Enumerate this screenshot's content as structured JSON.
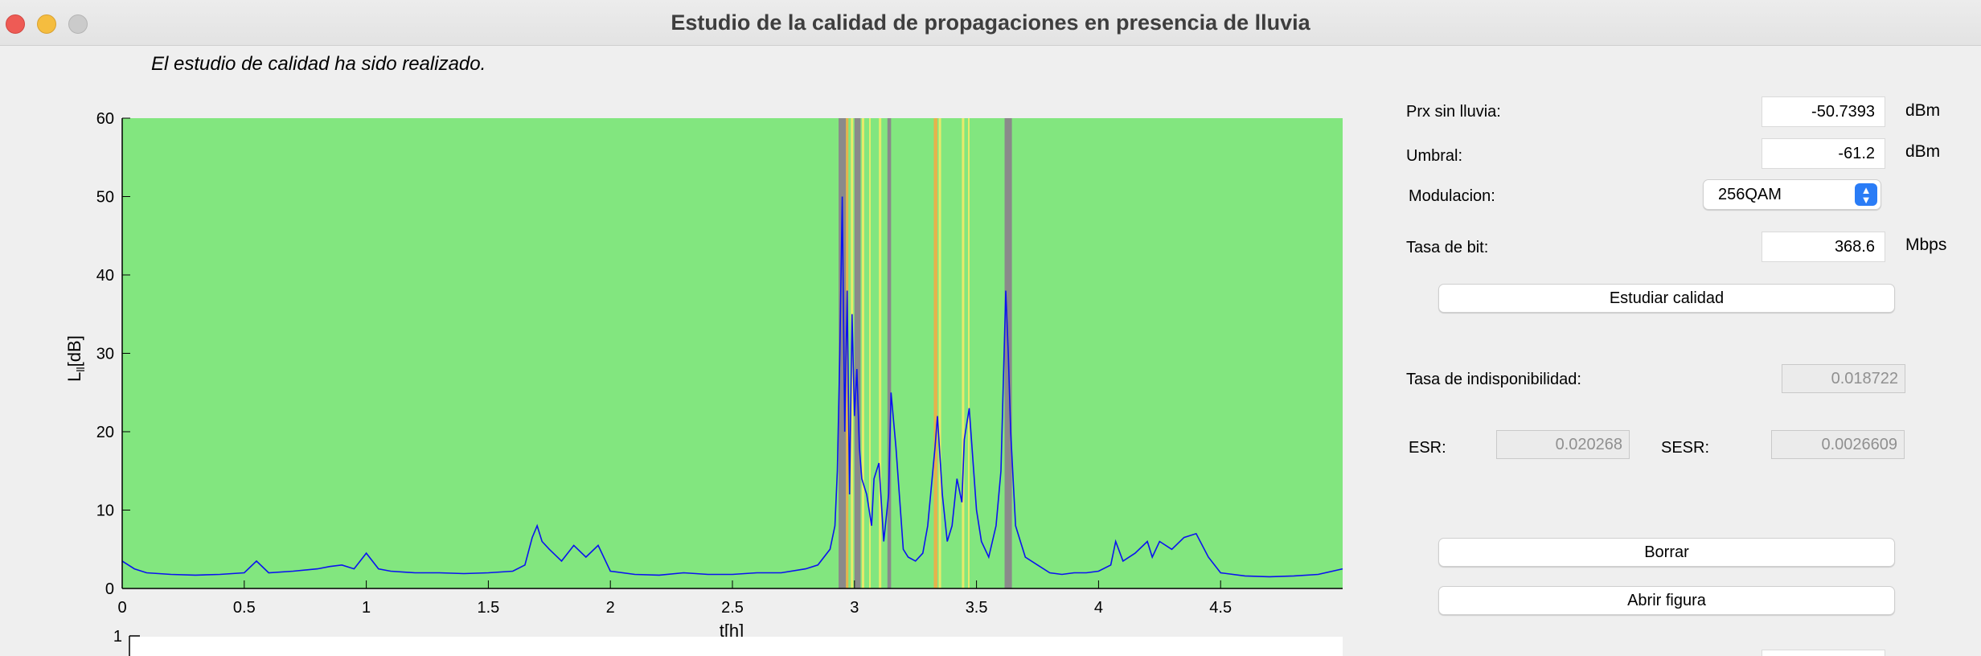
{
  "window": {
    "title": "Estudio de la calidad de propagaciones en presencia de lluvia"
  },
  "status_text": "El estudio de calidad ha sido realizado.",
  "form": {
    "prx": {
      "label": "Prx sin lluvia:",
      "value": "-50.7393",
      "unit": "dBm"
    },
    "umbral": {
      "label": "Umbral:",
      "value": "-61.2",
      "unit": "dBm"
    },
    "modulacion": {
      "label": "Modulacion:",
      "value": "256QAM"
    },
    "tasa_bit": {
      "label": "Tasa de bit:",
      "value": "368.6",
      "unit": "Mbps"
    },
    "study_button": "Estudiar calidad"
  },
  "results": {
    "indisp": {
      "label": "Tasa de indisponibilidad:",
      "value": "0.018722"
    },
    "esr": {
      "label": "ESR:",
      "value": "0.020268"
    },
    "sesr": {
      "label": "SESR:",
      "value": "0.0026609"
    }
  },
  "buttons": {
    "borrar": "Borrar",
    "abrir": "Abrir figura"
  },
  "colors": {
    "background_available": "#82e67f",
    "unavailable": "#8a8a8a",
    "degraded": "#e8ea6a",
    "orange": "#e6b24c",
    "series": "#0b12f0",
    "accent": "#2a7cf6"
  },
  "chart_data": {
    "type": "line",
    "xlabel": "t[h]",
    "ylabel": "L_ll[dB]",
    "xlim": [
      0,
      5
    ],
    "ylim": [
      0,
      60
    ],
    "xticks": [
      "0",
      "0.5",
      "1",
      "1.5",
      "2",
      "2.5",
      "3",
      "3.5",
      "4",
      "4.5"
    ],
    "yticks": [
      "0",
      "10",
      "20",
      "30",
      "40",
      "50",
      "60"
    ],
    "series": [
      {
        "x": [
          0,
          0.05,
          0.1,
          0.2,
          0.3,
          0.4,
          0.5,
          0.55,
          0.6,
          0.7,
          0.8,
          0.85,
          0.9,
          0.95,
          1.0,
          1.05,
          1.1,
          1.2,
          1.3,
          1.4,
          1.5,
          1.6,
          1.65,
          1.68,
          1.7,
          1.72,
          1.75,
          1.8,
          1.85,
          1.9,
          1.95,
          2.0,
          2.1,
          2.2,
          2.3,
          2.4,
          2.5,
          2.6,
          2.7,
          2.8,
          2.85,
          2.9,
          2.92,
          2.93,
          2.94,
          2.95,
          2.96,
          2.97,
          2.98,
          2.99,
          3.0,
          3.01,
          3.02,
          3.03,
          3.05,
          3.07,
          3.08,
          3.1,
          3.12,
          3.14,
          3.15,
          3.17,
          3.2,
          3.22,
          3.25,
          3.28,
          3.3,
          3.33,
          3.34,
          3.36,
          3.38,
          3.4,
          3.42,
          3.44,
          3.45,
          3.47,
          3.5,
          3.52,
          3.55,
          3.58,
          3.6,
          3.62,
          3.63,
          3.64,
          3.65,
          3.66,
          3.68,
          3.7,
          3.75,
          3.8,
          3.85,
          3.9,
          3.95,
          4.0,
          4.05,
          4.07,
          4.1,
          4.15,
          4.2,
          4.22,
          4.25,
          4.3,
          4.35,
          4.4,
          4.45,
          4.5,
          4.6,
          4.7,
          4.8,
          4.9,
          5.0
        ],
        "y": [
          3.5,
          2.5,
          2.0,
          1.8,
          1.7,
          1.8,
          2.0,
          3.5,
          2.0,
          2.2,
          2.5,
          2.8,
          3.0,
          2.5,
          4.5,
          2.5,
          2.2,
          2.0,
          2.0,
          1.9,
          2.0,
          2.2,
          3.0,
          6.5,
          8.0,
          6.0,
          5.0,
          3.5,
          5.5,
          4.0,
          5.5,
          2.2,
          1.8,
          1.7,
          2.0,
          1.8,
          1.8,
          2.0,
          2.0,
          2.5,
          3.0,
          5.0,
          8.0,
          15.0,
          30.0,
          50.0,
          20.0,
          38.0,
          12.0,
          35.0,
          22.0,
          28.0,
          18.0,
          14.0,
          12.0,
          8.0,
          14.0,
          16.0,
          6.0,
          12.0,
          25.0,
          18.0,
          5.0,
          4.0,
          3.5,
          4.5,
          8.0,
          18.0,
          22.0,
          12.0,
          6.0,
          8.0,
          14.0,
          11.0,
          19.0,
          23.0,
          10.0,
          6.0,
          4.0,
          8.0,
          15.0,
          38.0,
          30.0,
          20.0,
          14.0,
          8.0,
          6.0,
          4.0,
          3.0,
          2.0,
          1.8,
          2.0,
          2.0,
          2.2,
          3.0,
          6.0,
          3.5,
          4.5,
          6.0,
          4.0,
          6.0,
          5.0,
          6.5,
          7.0,
          4.0,
          2.0,
          1.6,
          1.5,
          1.6,
          1.8,
          2.5
        ]
      }
    ],
    "bands": [
      {
        "x0": 2.935,
        "x1": 2.965,
        "color": "#8a8a8a"
      },
      {
        "x0": 2.965,
        "x1": 2.975,
        "color": "#e6b24c"
      },
      {
        "x0": 2.985,
        "x1": 2.995,
        "color": "#e8ea6a"
      },
      {
        "x0": 3.0,
        "x1": 3.025,
        "color": "#8a8a8a"
      },
      {
        "x0": 3.03,
        "x1": 3.04,
        "color": "#e8ea6a"
      },
      {
        "x0": 3.06,
        "x1": 3.065,
        "color": "#e8ea6a"
      },
      {
        "x0": 3.1,
        "x1": 3.11,
        "color": "#e8ea6a"
      },
      {
        "x0": 3.135,
        "x1": 3.15,
        "color": "#8a8a8a"
      },
      {
        "x0": 3.325,
        "x1": 3.34,
        "color": "#e6b24c"
      },
      {
        "x0": 3.345,
        "x1": 3.355,
        "color": "#e8ea6a"
      },
      {
        "x0": 3.44,
        "x1": 3.45,
        "color": "#e8ea6a"
      },
      {
        "x0": 3.465,
        "x1": 3.47,
        "color": "#e8ea6a"
      },
      {
        "x0": 3.615,
        "x1": 3.645,
        "color": "#8a8a8a"
      }
    ]
  },
  "second_axes": {
    "ytick": "1"
  }
}
